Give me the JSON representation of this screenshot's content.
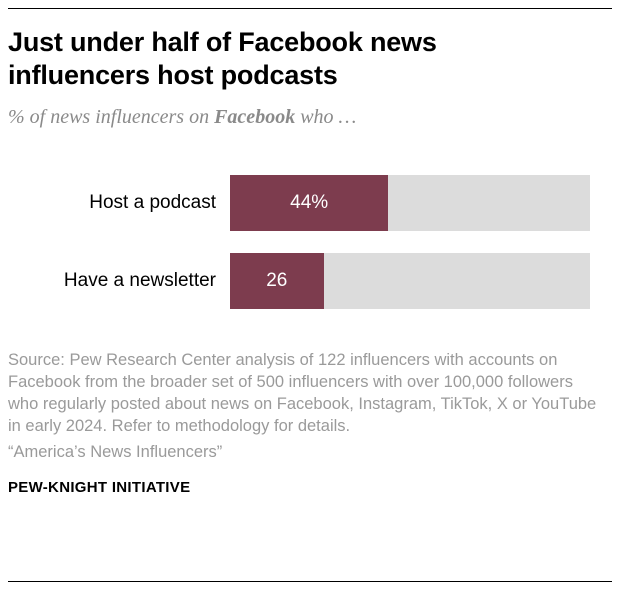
{
  "page": {
    "title": "Just under half of Facebook news influencers host podcasts",
    "subtitle": {
      "prefix": "% of news influencers on ",
      "emphasis": "Facebook",
      "suffix": " who …"
    },
    "source": "Source: Pew Research Center analysis of 122 influencers with accounts on Facebook from the broader set of 500 influencers with over 100,000 followers who regularly posted about news on Facebook, Instagram, TikTok, X or YouTube in early 2024. Refer to methodology for details.",
    "report_title": "“America’s News Influencers”",
    "footer": "PEW-KNIGHT INITIATIVE"
  },
  "chart_data": {
    "type": "bar",
    "orientation": "horizontal",
    "title": "Just under half of Facebook news influencers host podcasts",
    "subtitle": "% of news influencers on Facebook who …",
    "categories": [
      "Host a podcast",
      "Have a newsletter"
    ],
    "values": [
      44,
      26
    ],
    "value_labels": [
      "44%",
      "26"
    ],
    "xlim": [
      0,
      100
    ],
    "grid": false,
    "legend": "none",
    "bar_color": "#7d3c4e",
    "track_color": "#dcdcdc",
    "value_label_color": "#ffffff"
  }
}
